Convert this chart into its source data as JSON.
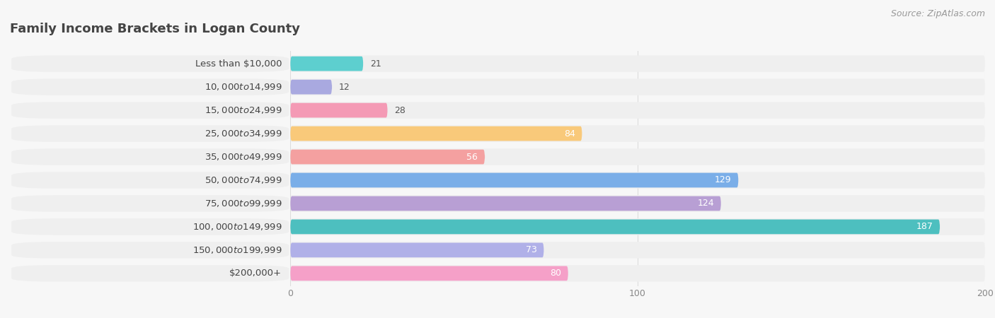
{
  "title": "Family Income Brackets in Logan County",
  "source": "Source: ZipAtlas.com",
  "categories": [
    "Less than $10,000",
    "$10,000 to $14,999",
    "$15,000 to $24,999",
    "$25,000 to $34,999",
    "$35,000 to $49,999",
    "$50,000 to $74,999",
    "$75,000 to $99,999",
    "$100,000 to $149,999",
    "$150,000 to $199,999",
    "$200,000+"
  ],
  "values": [
    21,
    12,
    28,
    84,
    56,
    129,
    124,
    187,
    73,
    80
  ],
  "bar_colors": [
    "#5dcfcf",
    "#a9a9e0",
    "#f49ab5",
    "#f9c97a",
    "#f4a0a0",
    "#7aaee8",
    "#b89fd4",
    "#4dbfbf",
    "#b0b0e8",
    "#f5a0c8"
  ],
  "background_color": "#f7f7f7",
  "bar_background_color": "#e8e8e8",
  "row_bg_color": "#efefef",
  "xlim_max": 200,
  "xticks": [
    0,
    100,
    200
  ],
  "title_fontsize": 13,
  "label_fontsize": 9.5,
  "value_fontsize": 9,
  "source_fontsize": 9,
  "title_color": "#444444",
  "label_color": "#444444",
  "value_color_dark": "#555555",
  "value_color_light": "#ffffff",
  "source_color": "#999999",
  "tick_color": "#888888",
  "grid_color": "#dddddd"
}
